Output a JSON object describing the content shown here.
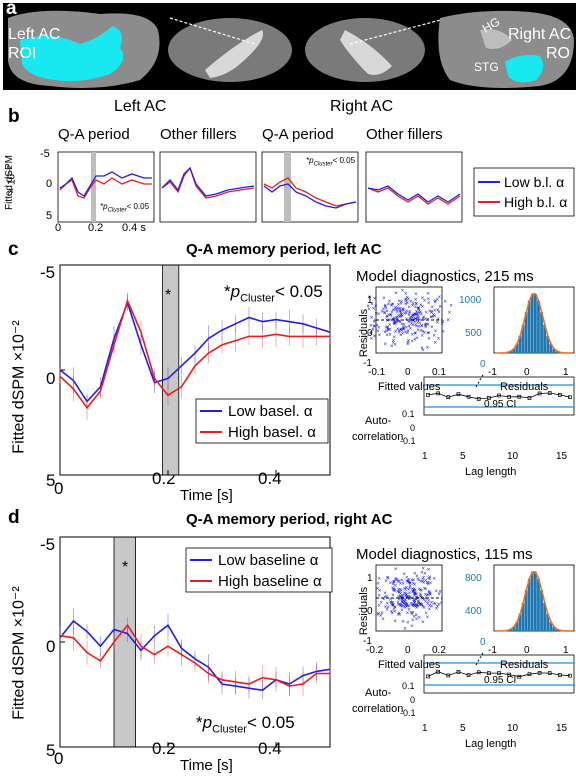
{
  "panels": {
    "a": {
      "letter": "a",
      "left_label": "Left AC\nROI",
      "left_label_lines": [
        "Left AC",
        "ROI"
      ],
      "right_label_lines": [
        "Right AC",
        "RO"
      ],
      "hg": "HG",
      "stg": "STG",
      "roi_color": "#18e8f0"
    },
    "b": {
      "letter": "b",
      "left_header": "Left AC",
      "right_header": "Right  AC",
      "sub_qa": "Q-A period",
      "sub_other": "Other fillers",
      "ylabel_line1": "Fitted dSPM",
      "ylabel_line2": "× 10⁻²",
      "yticks": [
        "-5",
        "0",
        "5"
      ],
      "xticks": [
        "0",
        "0.2",
        "0.4 s"
      ],
      "sig_left": "*p",
      "sig_left_sub": "Cluster",
      "sig_left_tail": "< 0.05",
      "sig_right": "*p",
      "sig_right_sub": "Cluster",
      "sig_right_tail": "< 0.05",
      "legend": [
        "Low b.l. α",
        "High b.l. α"
      ]
    },
    "c": {
      "letter": "c",
      "title": "Q-A memory period, left AC",
      "ylabel": "Fitted dSPM ×10⁻²",
      "xlabel": "Time [s]",
      "yticks": [
        "-5",
        "0",
        "5"
      ],
      "xticks": [
        "0",
        "0.2",
        "0.4"
      ],
      "star": "*",
      "sig_star": "*",
      "sig_p": "p",
      "sig_sub": "Cluster",
      "sig_tail": "< 0.05",
      "legend": [
        "Low basel. α",
        "High basel. α"
      ],
      "diag_title": "Model diagnostics, 215 ms",
      "resid_ylabel": "Residuals",
      "resid_xlabel": "Fitted values",
      "resid_xticks": [
        "-0.1",
        "0",
        "0.1"
      ],
      "hist_xlabel": "Residuals",
      "hist_yticks": [
        "1000",
        "500",
        "0"
      ],
      "hist_xticks": [
        "-1",
        "0",
        "1"
      ],
      "acf_ylabel": [
        "Auto-",
        "correlation"
      ],
      "acf_xlabel": "Lag length",
      "acf_xticks": [
        "1",
        "5",
        "10",
        "15"
      ],
      "acf_yticks": [
        "0.1",
        "0",
        "-0.1"
      ],
      "acf_ci": "0.95 CI",
      "resid_yticks": [
        "1",
        "0",
        "-1"
      ]
    },
    "d": {
      "letter": "d",
      "title": "Q-A memory period, right AC",
      "ylabel": "Fitted dSPM ×10⁻²",
      "xlabel": "Time [s]",
      "yticks": [
        "-5",
        "0",
        "5"
      ],
      "xticks": [
        "0",
        "0.2",
        "0.4"
      ],
      "star": "*",
      "sig_star": "*",
      "sig_p": "p",
      "sig_sub": "Cluster",
      "sig_tail": "< 0.05",
      "legend": [
        "Low baseline α",
        "High baseline α"
      ],
      "diag_title": "Model diagnostics, 115 ms",
      "resid_ylabel": "Residuals",
      "resid_xlabel": "Fitted values",
      "resid_xticks": [
        "-0.2",
        "0",
        "0.2"
      ],
      "hist_xlabel": "Residuals",
      "hist_yticks": [
        "800",
        "400",
        "0"
      ],
      "hist_xticks": [
        "-1",
        "0",
        "1"
      ],
      "acf_ylabel": [
        "Auto-",
        "correlation"
      ],
      "acf_xlabel": "Lag length",
      "acf_xticks": [
        "1",
        "5",
        "10",
        "15"
      ],
      "acf_yticks": [
        "0.1",
        "0",
        "-0.1"
      ],
      "acf_ci": "0.95 CI",
      "resid_yticks": [
        "1",
        "0",
        "-1"
      ]
    }
  },
  "colors": {
    "low": "#1f1fe6",
    "high": "#e81e1e",
    "sig_band": "#c8c8c8",
    "hist": "#1f77b4",
    "fit": "#f07020"
  },
  "chart_data": [
    {
      "type": "line",
      "id": "c",
      "x": [
        0.0,
        0.025,
        0.05,
        0.075,
        0.1,
        0.125,
        0.15,
        0.175,
        0.2,
        0.225,
        0.25,
        0.275,
        0.3,
        0.325,
        0.35,
        0.375,
        0.4,
        0.425,
        0.45,
        0.475,
        0.5
      ],
      "series": [
        {
          "name": "Low basel. α",
          "values": [
            0,
            0.5,
            1.5,
            0.8,
            -1.5,
            -3.2,
            -1.2,
            0.6,
            0.4,
            -0.2,
            -0.8,
            -1.5,
            -1.9,
            -2.2,
            -2.5,
            -2.3,
            -2.4,
            -2.3,
            -2.2,
            -2.0,
            -1.8
          ]
        },
        {
          "name": "High basel. α",
          "values": [
            0.3,
            0.9,
            1.8,
            1.0,
            -1.2,
            -3.3,
            -1.8,
            0.4,
            1.2,
            0.8,
            -0.2,
            -0.8,
            -1.2,
            -1.4,
            -1.6,
            -1.6,
            -1.7,
            -1.6,
            -1.6,
            -1.6,
            -1.6
          ]
        }
      ],
      "sig_window": [
        0.19,
        0.22
      ],
      "ylim": [
        5,
        -5
      ],
      "xlim": [
        0,
        0.5
      ]
    },
    {
      "type": "line",
      "id": "d",
      "x": [
        0.0,
        0.025,
        0.05,
        0.075,
        0.1,
        0.125,
        0.15,
        0.175,
        0.2,
        0.225,
        0.25,
        0.275,
        0.3,
        0.325,
        0.35,
        0.375,
        0.4,
        0.425,
        0.45,
        0.475,
        0.5
      ],
      "series": [
        {
          "name": "Low baseline α",
          "values": [
            -0.2,
            -1.0,
            -0.5,
            0.2,
            -0.6,
            -0.4,
            0.4,
            -0.3,
            -0.8,
            0.3,
            0.8,
            1.2,
            2.0,
            2.1,
            2.2,
            2.3,
            1.8,
            2.0,
            1.6,
            1.4,
            1.3
          ]
        },
        {
          "name": "High baseline α",
          "values": [
            -0.3,
            -0.2,
            0.5,
            0.9,
            0.0,
            -0.8,
            0.2,
            0.6,
            0.2,
            0.6,
            1.0,
            1.5,
            1.8,
            1.9,
            2.0,
            1.7,
            1.8,
            2.1,
            2.0,
            1.5,
            1.5
          ]
        }
      ],
      "sig_window": [
        0.1,
        0.14
      ],
      "ylim": [
        5,
        -5
      ],
      "xlim": [
        0,
        0.5
      ]
    }
  ]
}
